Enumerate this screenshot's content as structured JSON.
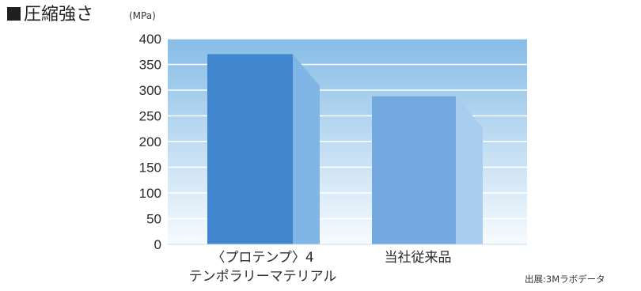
{
  "header": {
    "title": "圧縮強さ",
    "unit": "(MPa)"
  },
  "source": "出展:3Mラボデータ",
  "colors": {
    "bar_primary": "#3f86cf",
    "bar_primary_side": "#7fb6e6",
    "bar_secondary": "#74a9e0",
    "bar_secondary_side": "#a9cdef",
    "plot_bg_top": "#87bde6",
    "plot_bg_bottom": "#f7fbfe",
    "gridline": "#ffffff",
    "title_marker": "#1f1f1f"
  },
  "chart_data": {
    "type": "bar",
    "title": "圧縮強さ",
    "ylabel": "(MPa)",
    "xlabel": "",
    "ylim": [
      0,
      400
    ],
    "yticks": [
      0,
      50,
      100,
      150,
      200,
      250,
      300,
      350,
      400
    ],
    "grid": true,
    "categories": [
      [
        "〈プロテンプ〉4",
        "テンポラリーマテリアル"
      ],
      [
        "当社従来品"
      ]
    ],
    "values": [
      370,
      288
    ]
  }
}
